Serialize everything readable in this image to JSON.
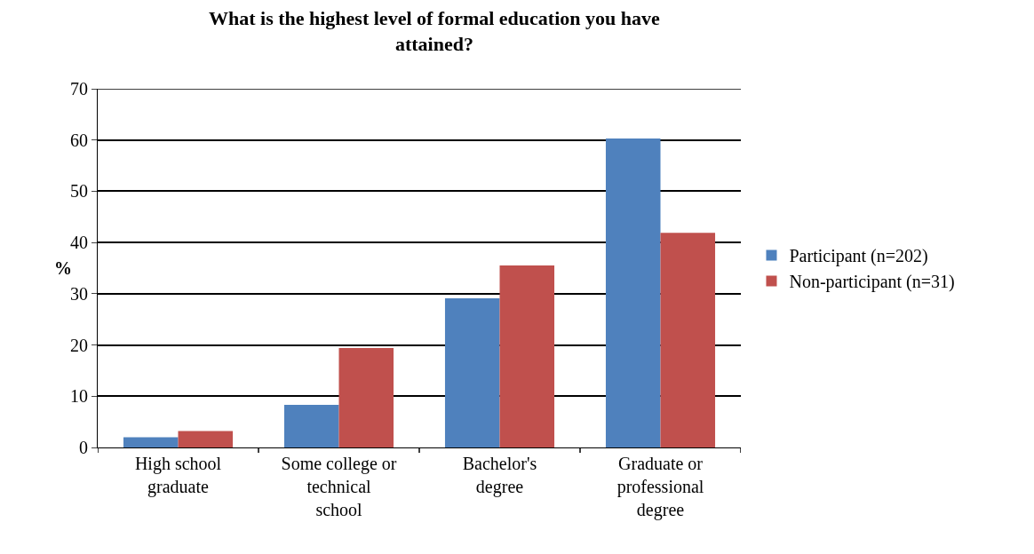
{
  "chart_data": {
    "type": "bar",
    "title": "What is the highest level of formal education you have attained?",
    "ylabel": "%",
    "categories": [
      "High school graduate",
      "Some college or technical school",
      "Bachelor's degree",
      "Graduate or professional degree"
    ],
    "series": [
      {
        "name": "Participant (n=202)",
        "color": "#4f81bd",
        "values": [
          2.0,
          8.3,
          29.1,
          60.3
        ]
      },
      {
        "name": "Non-participant (n=31)",
        "color": "#c0504d",
        "values": [
          3.2,
          19.4,
          35.5,
          41.9
        ]
      }
    ],
    "ylim": [
      0,
      70
    ],
    "yticks": [
      0,
      10,
      20,
      30,
      40,
      50,
      60,
      70
    ],
    "grid": "y",
    "legend": "right"
  }
}
